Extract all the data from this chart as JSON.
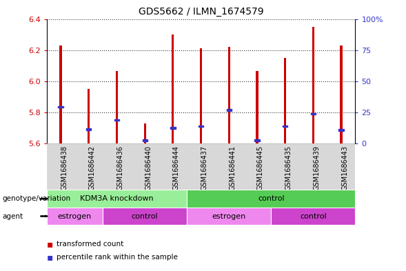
{
  "title": "GDS5662 / ILMN_1674579",
  "samples": [
    "GSM1686438",
    "GSM1686442",
    "GSM1686436",
    "GSM1686440",
    "GSM1686444",
    "GSM1686437",
    "GSM1686441",
    "GSM1686445",
    "GSM1686435",
    "GSM1686439",
    "GSM1686443"
  ],
  "bar_tops": [
    6.23,
    5.95,
    6.065,
    5.73,
    6.3,
    6.21,
    6.22,
    6.065,
    6.15,
    6.35,
    6.23
  ],
  "blue_positions": [
    5.835,
    5.69,
    5.75,
    5.62,
    5.7,
    5.71,
    5.815,
    5.62,
    5.71,
    5.79,
    5.685
  ],
  "ymin": 5.6,
  "ymax": 6.4,
  "right_yticks": [
    0,
    25,
    50,
    75,
    100
  ],
  "right_yticklabels": [
    "0",
    "25",
    "50",
    "75",
    "100%"
  ],
  "left_yticks": [
    5.6,
    5.8,
    6.0,
    6.2,
    6.4
  ],
  "bar_color": "#cc0000",
  "blue_color": "#3333cc",
  "bar_width": 0.08,
  "genotype_color1": "#99ee99",
  "genotype_color2": "#55cc55",
  "agent_color_estrogen": "#ee88ee",
  "agent_color_control": "#cc44cc",
  "legend_items": [
    {
      "label": "transformed count",
      "color": "#cc0000"
    },
    {
      "label": "percentile rank within the sample",
      "color": "#3333cc"
    }
  ],
  "tick_color_left": "#cc0000",
  "tick_color_right": "#3333cc",
  "title_fontsize": 10,
  "label_fontsize": 8,
  "sample_fontsize": 7
}
